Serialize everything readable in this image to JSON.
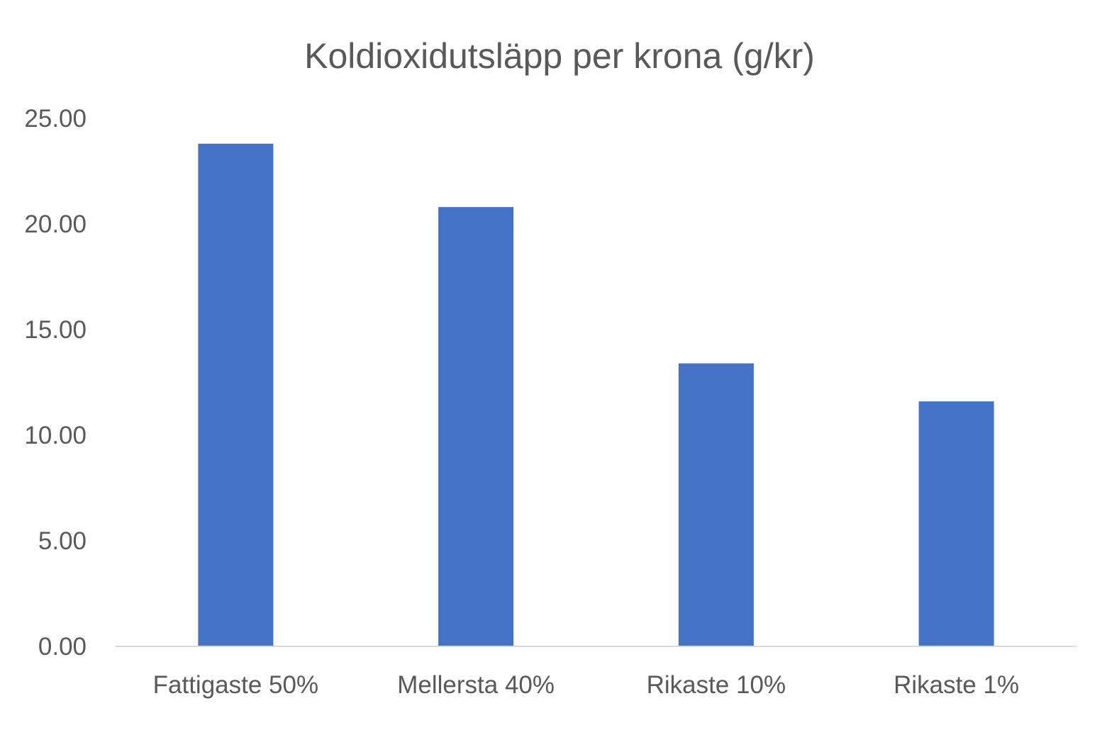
{
  "chart_data": {
    "type": "bar",
    "title": "Koldioxidutsläpp per krona (g/kr)",
    "xlabel": "",
    "ylabel": "",
    "categories": [
      "Fattigaste 50%",
      "Mellersta 40%",
      "Rikaste 10%",
      "Rikaste 1%"
    ],
    "series": [
      {
        "values": [
          23.8,
          20.8,
          13.4,
          11.6
        ]
      }
    ],
    "ylim": [
      0,
      25
    ],
    "yticks": [
      "0.00",
      "5.00",
      "10.00",
      "15.00",
      "20.00",
      "25.00"
    ],
    "grid": false,
    "legend": "none",
    "colors": {
      "bar": "#4472C4",
      "axis_line": "#d9d9d9",
      "text": "#595959"
    }
  }
}
